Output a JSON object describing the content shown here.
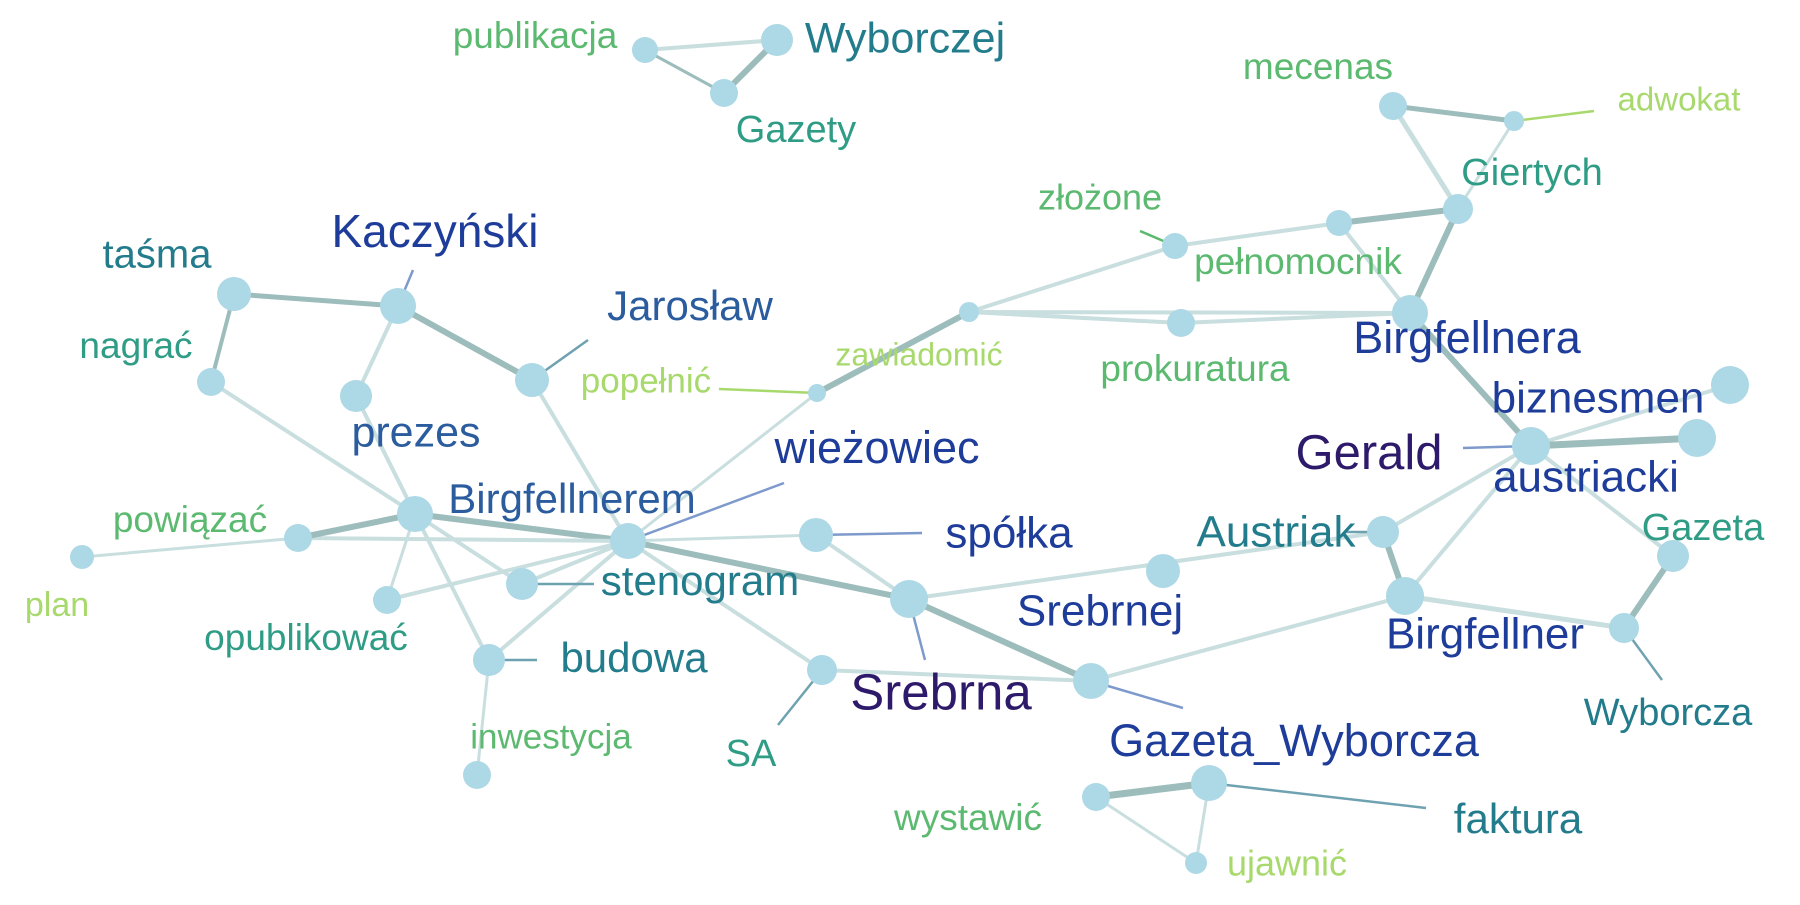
{
  "palette": {
    "node_fill": "#ADD8E6",
    "edge_light": "#C9DEDF",
    "edge_dark": "#9DBCBC",
    "label_lime": "#A8D96C",
    "label_green": "#5CB970",
    "label_teal_green": "#2F9C85",
    "label_teal": "#237C8C",
    "label_blue": "#2A5C9E",
    "label_navy": "#1E3C99",
    "label_indigo": "#2E1A6A",
    "pointer_blue": "#7E9ACC",
    "pointer_teal": "#6FA2B0"
  },
  "graph": {
    "nodes": [
      {
        "id": "publikacja",
        "label": "publikacja",
        "color": "label_green",
        "size": "md"
      },
      {
        "id": "wyborczej",
        "label": "Wyborczej",
        "color": "label_teal",
        "size": "lg"
      },
      {
        "id": "gazety",
        "label": "Gazety",
        "color": "label_teal_green",
        "size": "md"
      },
      {
        "id": "mecenas",
        "label": "mecenas",
        "color": "label_green",
        "size": "md"
      },
      {
        "id": "adwokat",
        "label": "adwokat",
        "color": "label_lime",
        "size": "sm"
      },
      {
        "id": "giertych",
        "label": "Giertych",
        "color": "label_teal_green",
        "size": "md"
      },
      {
        "id": "zlozone",
        "label": "złożone",
        "color": "label_green",
        "size": "md"
      },
      {
        "id": "pelnomocnik",
        "label": "pełnomocnik",
        "color": "label_green",
        "size": "md"
      },
      {
        "id": "prokuratura",
        "label": "prokuratura",
        "color": "label_green",
        "size": "md"
      },
      {
        "id": "birgfellnera",
        "label": "Birgfellnera",
        "color": "label_navy",
        "size": "lg"
      },
      {
        "id": "zawiadomic",
        "label": "zawiadomić",
        "color": "label_lime",
        "size": "sm"
      },
      {
        "id": "popelnic",
        "label": "popełnić",
        "color": "label_lime",
        "size": "sm"
      },
      {
        "id": "kaczynski",
        "label": "Kaczyński",
        "color": "label_navy",
        "size": "lg"
      },
      {
        "id": "tasma",
        "label": "taśma",
        "color": "label_teal",
        "size": "lg"
      },
      {
        "id": "nagrac",
        "label": "nagrać",
        "color": "label_teal_green",
        "size": "md"
      },
      {
        "id": "jaroslaw",
        "label": "Jarosław",
        "color": "label_blue",
        "size": "lg"
      },
      {
        "id": "prezes",
        "label": "prezes",
        "color": "label_blue",
        "size": "lg"
      },
      {
        "id": "birgfellnerem",
        "label": "Birgfellnerem",
        "color": "label_blue",
        "size": "lg"
      },
      {
        "id": "powiazac",
        "label": "powiązać",
        "color": "label_green",
        "size": "md"
      },
      {
        "id": "plan",
        "label": "plan",
        "color": "label_lime",
        "size": "sm"
      },
      {
        "id": "opublikowac",
        "label": "opublikować",
        "color": "label_teal_green",
        "size": "md"
      },
      {
        "id": "wiezowiec",
        "label": "wieżowiec",
        "color": "label_navy",
        "size": "lg"
      },
      {
        "id": "spolka",
        "label": "spółka",
        "color": "label_navy",
        "size": "lg"
      },
      {
        "id": "stenogram",
        "label": "stenogram",
        "color": "label_teal",
        "size": "lg"
      },
      {
        "id": "budowa",
        "label": "budowa",
        "color": "label_teal",
        "size": "lg"
      },
      {
        "id": "inwestycja",
        "label": "inwestycja",
        "color": "label_green",
        "size": "md"
      },
      {
        "id": "sa",
        "label": "SA",
        "color": "label_teal_green",
        "size": "md"
      },
      {
        "id": "srebrna",
        "label": "Srebrna",
        "color": "label_indigo",
        "size": "xl"
      },
      {
        "id": "srebrnej",
        "label": "Srebrnej",
        "color": "label_navy",
        "size": "lg"
      },
      {
        "id": "austriak",
        "label": "Austriak",
        "color": "label_teal",
        "size": "lg"
      },
      {
        "id": "gerald",
        "label": "Gerald",
        "color": "label_indigo",
        "size": "xl"
      },
      {
        "id": "biznesmen",
        "label": "biznesmen",
        "color": "label_navy",
        "size": "lg"
      },
      {
        "id": "austriacki",
        "label": "austriacki",
        "color": "label_navy",
        "size": "lg"
      },
      {
        "id": "gazeta",
        "label": "Gazeta",
        "color": "label_teal_green",
        "size": "md"
      },
      {
        "id": "birgfellner",
        "label": "Birgfellner",
        "color": "label_navy",
        "size": "lg"
      },
      {
        "id": "wyborcza",
        "label": "Wyborcza",
        "color": "label_teal",
        "size": "md"
      },
      {
        "id": "gazeta_wyborcza",
        "label": "Gazeta_Wyborcza",
        "color": "label_navy",
        "size": "lg"
      },
      {
        "id": "wystawic",
        "label": "wystawić",
        "color": "label_green",
        "size": "md"
      },
      {
        "id": "faktura",
        "label": "faktura",
        "color": "label_teal",
        "size": "lg"
      },
      {
        "id": "ujawnic",
        "label": "ujawnić",
        "color": "label_lime",
        "size": "md"
      },
      {
        "id": "isolated_node",
        "label": "",
        "color": "label_green",
        "size": "md"
      }
    ]
  }
}
